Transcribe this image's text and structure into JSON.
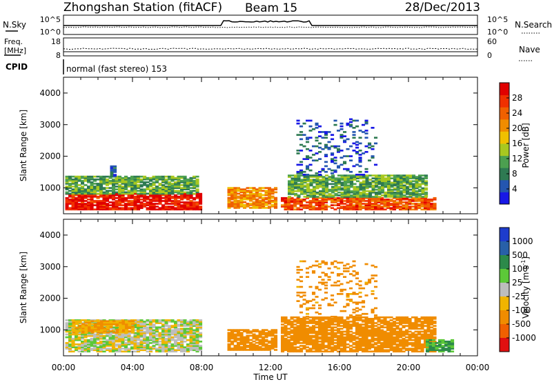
{
  "header": {
    "station": "Zhongshan Station (fitACF)",
    "beam": "Beam 15",
    "date": "28/Dec/2013",
    "program": "normal (fast stereo) 153"
  },
  "strips": {
    "nsky_label": "N.Sky",
    "nsearch_label": "N.Search",
    "freq_label_1": "Freq.",
    "freq_label_2": "[MHz]",
    "nave_label": "Nave",
    "cpid_label": "CPID",
    "nsky_ticks": [
      "10^5",
      "10^0"
    ],
    "nsearch_ticks": [
      "10^5",
      "10^0"
    ],
    "freq_ticks": [
      "18",
      "8"
    ],
    "nave_ticks": [
      "60",
      "0"
    ]
  },
  "chart_data": [
    {
      "type": "heatmap",
      "quantity": "power",
      "ylabel": "Slant Range [km]",
      "xlabel": "Time UT",
      "xlim_hours": [
        0,
        24
      ],
      "ylim_km": [
        180,
        4500
      ],
      "x_ticks": [
        "00:00",
        "04:00",
        "08:00",
        "12:00",
        "16:00",
        "20:00",
        "00:00"
      ],
      "y_ticks": [
        "1000",
        "2000",
        "3000",
        "4000"
      ],
      "colorbar": {
        "label": "Power [dB]",
        "ticks": [
          "4",
          "8",
          "12",
          "16",
          "20",
          "24",
          "28"
        ],
        "colors": [
          "#1818e6",
          "#2456b0",
          "#2e7a52",
          "#4ca050",
          "#a8c820",
          "#f0c000",
          "#f08c00",
          "#f06000",
          "#f03000",
          "#e00000"
        ]
      },
      "regions": [
        {
          "t": [
            0.1,
            8.0
          ],
          "range_km": [
            300,
            800
          ],
          "value_db": 28
        },
        {
          "t": [
            0.1,
            7.8
          ],
          "range_km": [
            800,
            1350
          ],
          "value_db": 12
        },
        {
          "t": [
            2.7,
            3.0
          ],
          "range_km": [
            1350,
            1700
          ],
          "value_db": 8
        },
        {
          "t": [
            9.5,
            12.3
          ],
          "range_km": [
            350,
            1000
          ],
          "value_db": 20
        },
        {
          "t": [
            12.6,
            21.5
          ],
          "range_km": [
            300,
            700
          ],
          "value_db": 24
        },
        {
          "t": [
            13.0,
            21.0
          ],
          "range_km": [
            700,
            1400
          ],
          "value_db": 12
        },
        {
          "t": [
            13.5,
            18.0
          ],
          "range_km": [
            1400,
            3200
          ],
          "value_db": 6
        }
      ]
    },
    {
      "type": "heatmap",
      "quantity": "velocity",
      "ylabel": "Slant Range [km]",
      "xlabel": "Time UT",
      "xlim_hours": [
        0,
        24
      ],
      "ylim_km": [
        180,
        4500
      ],
      "x_ticks": [
        "00:00",
        "04:00",
        "08:00",
        "12:00",
        "16:00",
        "20:00",
        "00:00"
      ],
      "y_ticks": [
        "1000",
        "2000",
        "3000",
        "4000"
      ],
      "colorbar": {
        "label": "Velocity [m s^-1]",
        "ticks": [
          "1000",
          "500",
          "100",
          "25",
          "-25",
          "-100",
          "-500",
          "-1000"
        ],
        "colors": [
          "#1e3ccc",
          "#2860a8",
          "#2c8a4a",
          "#5cc838",
          "#bdbdbd",
          "#f0b400",
          "#f08c00",
          "#f06000",
          "#e01010"
        ]
      },
      "regions": [
        {
          "t": [
            0.1,
            8.0
          ],
          "range_km": [
            300,
            1300
          ],
          "value_ms": 0
        },
        {
          "t": [
            0.5,
            4.0
          ],
          "range_km": [
            900,
            1300
          ],
          "value_ms": -100
        },
        {
          "t": [
            9.5,
            12.3
          ],
          "range_km": [
            350,
            1000
          ],
          "value_ms": -200
        },
        {
          "t": [
            12.6,
            21.5
          ],
          "range_km": [
            300,
            1400
          ],
          "value_ms": -300
        },
        {
          "t": [
            13.5,
            18.0
          ],
          "range_km": [
            1400,
            3200
          ],
          "value_ms": -150
        },
        {
          "t": [
            21.0,
            22.5
          ],
          "range_km": [
            300,
            700
          ],
          "value_ms": 100
        }
      ]
    }
  ]
}
